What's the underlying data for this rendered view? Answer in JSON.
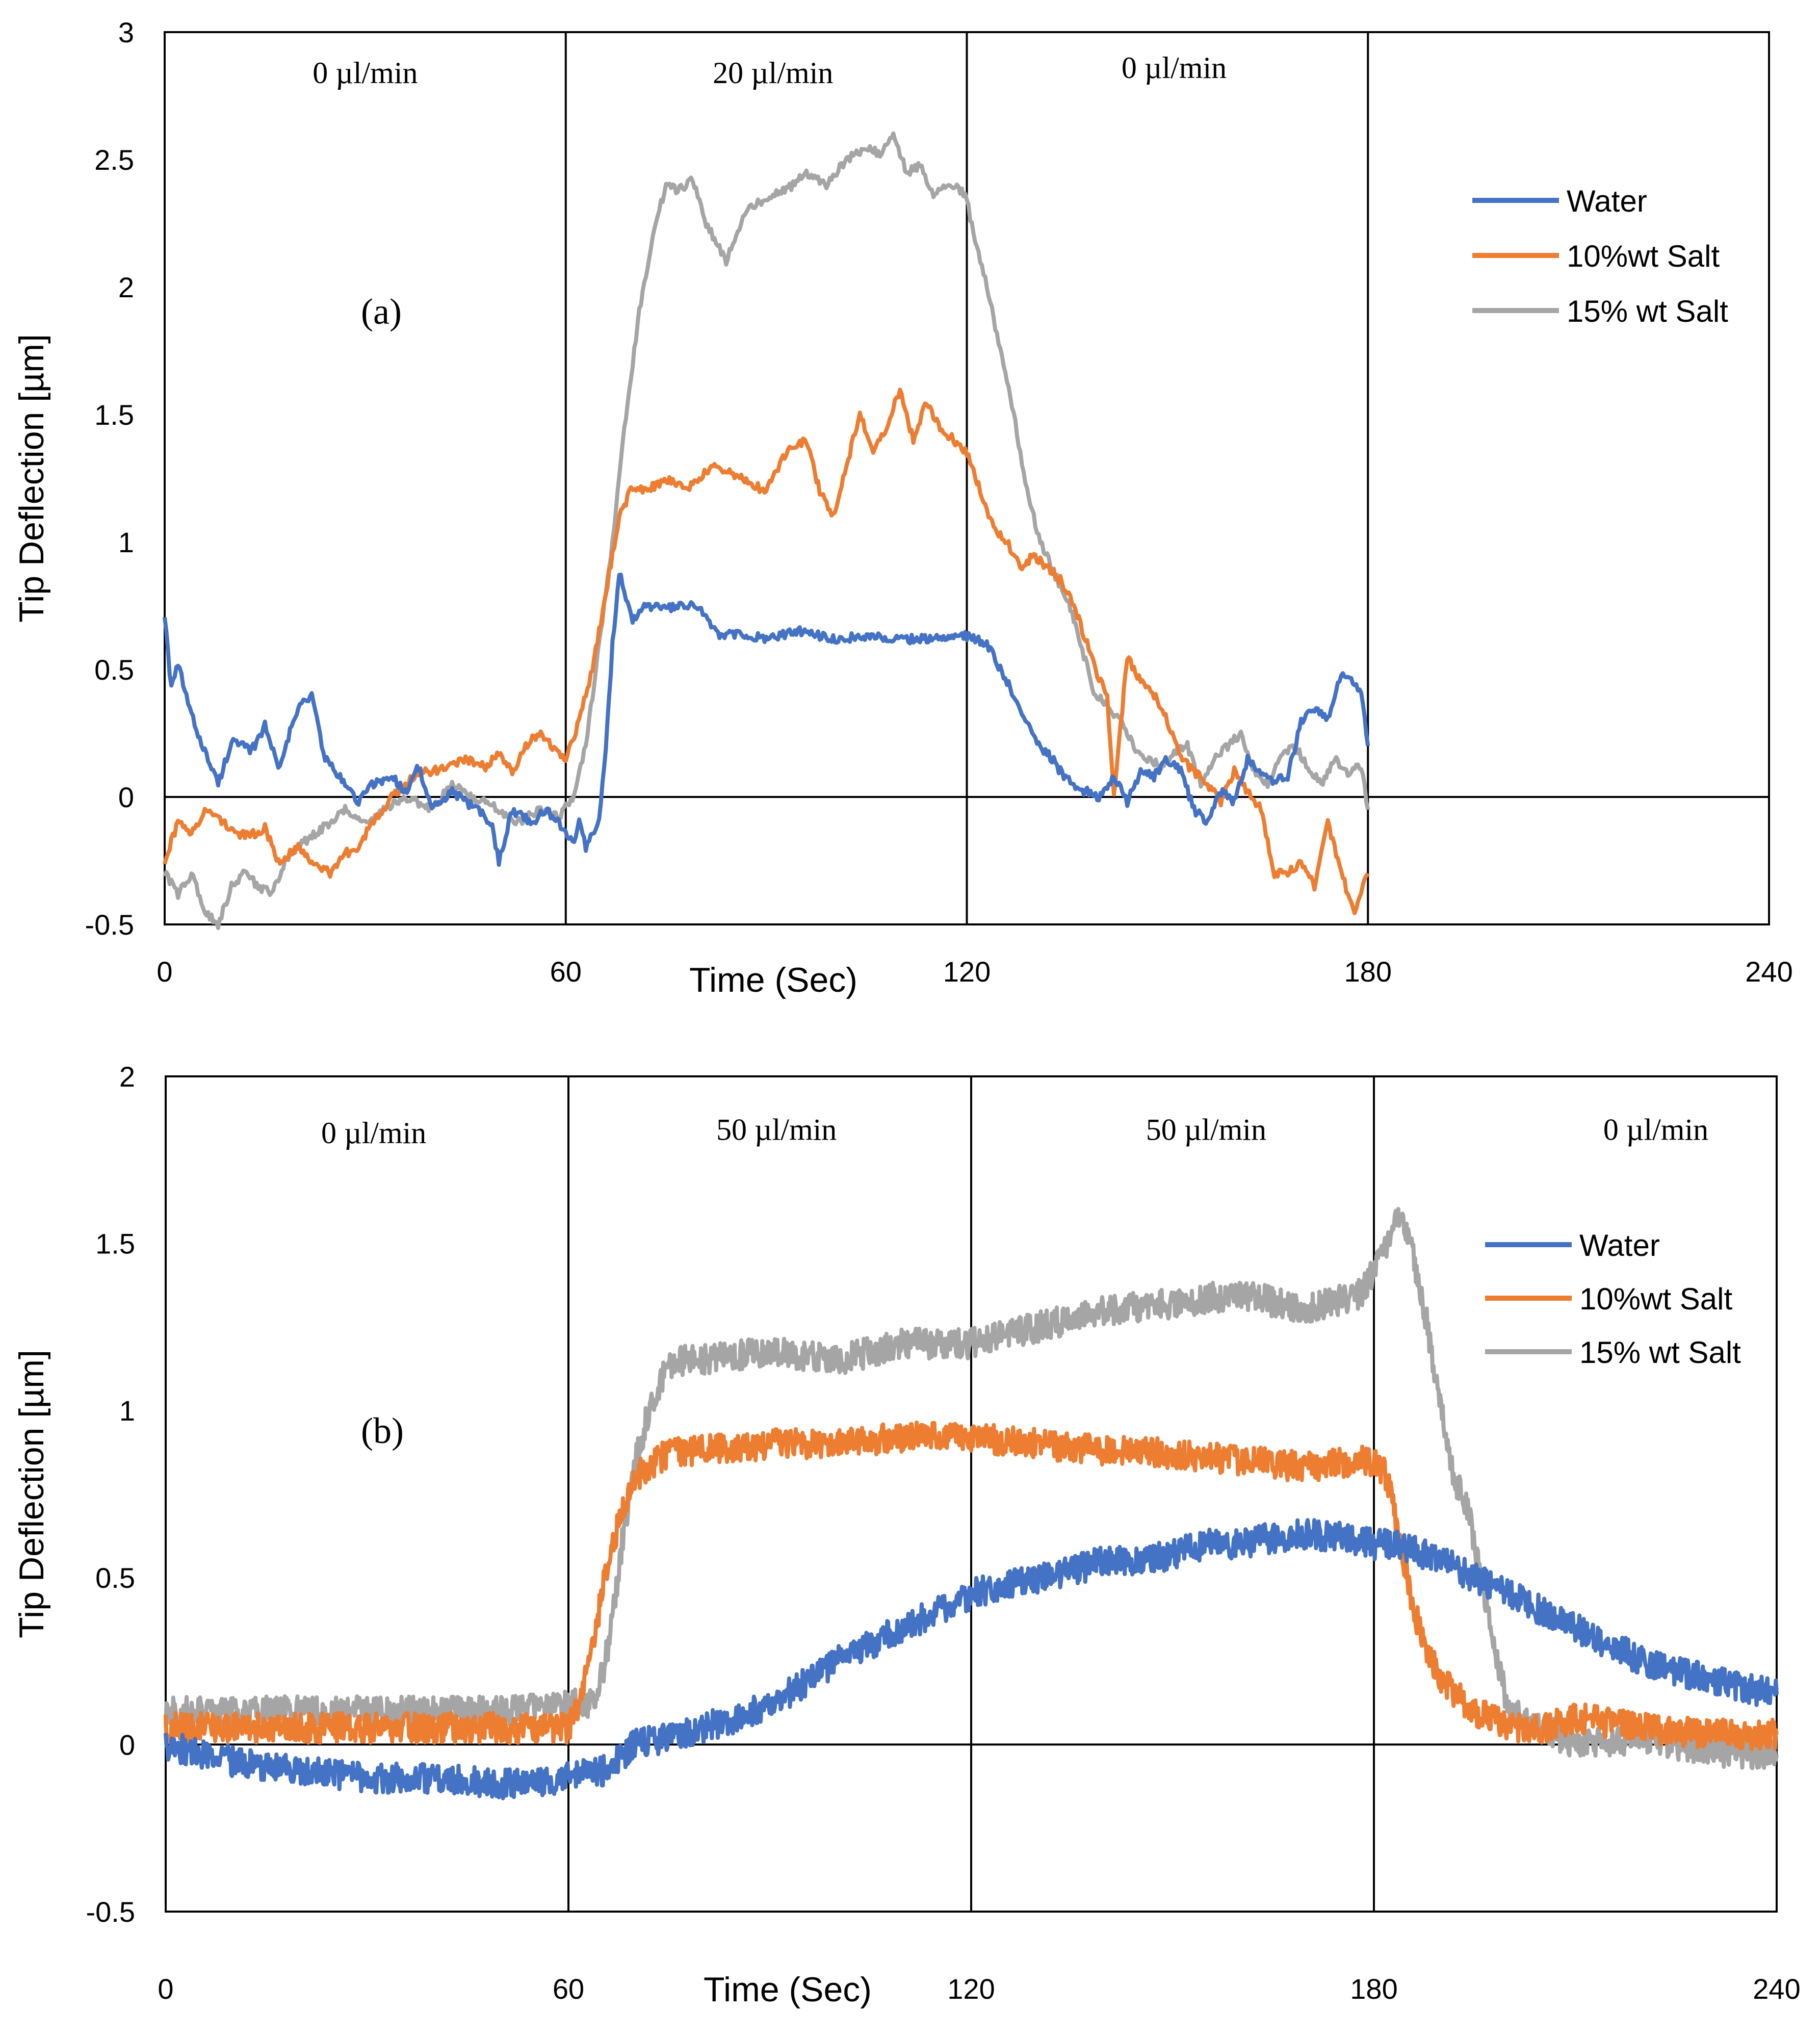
{
  "chart_data": [
    {
      "type": "line",
      "panel_label": "(a)",
      "xlabel": "Time (Sec)",
      "ylabel": "Tip Deflection [µm]",
      "xlim": [
        0,
        240
      ],
      "ylim": [
        -0.5,
        3
      ],
      "x_ticks": [
        0,
        60,
        120,
        180,
        240
      ],
      "x_tick_labels": [
        "0",
        "60",
        "120",
        "180",
        "240"
      ],
      "y_ticks": [
        -0.5,
        0,
        0.5,
        1,
        1.5,
        2,
        2.5,
        3
      ],
      "y_tick_labels": [
        "-0.5",
        "0",
        "0.5",
        "1",
        "1.5",
        "2",
        "2.5",
        "3"
      ],
      "vertical_lines": [
        60,
        120,
        180
      ],
      "flow_annotations": [
        {
          "text": "0 µl/min",
          "x": 30,
          "y": 2.8
        },
        {
          "text": "20 µl/min",
          "x": 91,
          "y": 2.8
        },
        {
          "text": "0 µl/min",
          "x": 151,
          "y": 2.82
        }
      ],
      "legend": [
        "Water",
        "10%wt Salt",
        "15% wt Salt"
      ],
      "series": [
        {
          "name": "Water",
          "color": "#4472C4",
          "x": [
            0,
            1,
            2,
            4,
            6,
            8,
            10,
            13,
            15,
            17,
            20,
            22,
            24,
            27,
            29,
            31,
            34,
            36,
            38,
            40,
            43,
            45,
            47,
            49,
            50,
            52,
            55,
            57,
            59,
            61,
            62,
            63,
            64,
            65,
            66,
            67,
            68,
            70,
            72,
            75,
            80,
            82,
            83,
            86,
            90,
            95,
            100,
            105,
            110,
            115,
            119,
            121,
            123,
            125,
            127,
            129,
            131,
            133,
            134,
            136,
            138,
            140,
            142,
            144,
            146,
            148,
            150,
            152,
            154,
            156,
            158,
            160,
            162,
            164,
            166,
            168,
            170,
            172,
            174,
            176,
            178,
            179,
            180
          ],
          "y": [
            0.72,
            0.42,
            0.52,
            0.32,
            0.18,
            0.05,
            0.22,
            0.18,
            0.28,
            0.12,
            0.35,
            0.4,
            0.15,
            0.05,
            -0.02,
            0.05,
            0.08,
            0.02,
            0.12,
            -0.05,
            0.02,
            -0.02,
            -0.05,
            -0.12,
            -0.25,
            -0.05,
            -0.1,
            -0.05,
            -0.1,
            -0.18,
            -0.1,
            -0.2,
            -0.15,
            -0.1,
            0.2,
            0.6,
            0.88,
            0.7,
            0.75,
            0.74,
            0.75,
            0.66,
            0.63,
            0.64,
            0.62,
            0.65,
            0.62,
            0.63,
            0.62,
            0.62,
            0.64,
            0.62,
            0.6,
            0.5,
            0.4,
            0.3,
            0.2,
            0.14,
            0.1,
            0.04,
            0.02,
            0.0,
            0.08,
            -0.02,
            0.1,
            0.08,
            0.15,
            0.1,
            -0.05,
            -0.1,
            0.02,
            -0.02,
            0.15,
            0.1,
            0.06,
            0.08,
            0.3,
            0.35,
            0.3,
            0.48,
            0.45,
            0.4,
            0.2
          ]
        },
        {
          "name": "10%wt Salt",
          "color": "#ED7D31",
          "x": [
            0,
            2,
            4,
            6,
            9,
            11,
            13,
            15,
            17,
            20,
            22,
            25,
            27,
            29,
            31,
            34,
            36,
            38,
            40,
            43,
            45,
            48,
            50,
            52,
            54,
            56,
            58,
            60,
            62,
            64,
            66,
            68,
            70,
            72,
            75,
            78,
            82,
            86,
            90,
            93,
            96,
            98,
            100,
            102,
            104,
            106,
            108,
            110,
            112,
            114,
            116,
            118,
            120,
            122,
            124,
            126,
            128,
            130,
            132,
            134,
            136,
            138,
            140,
            141,
            142,
            144,
            146,
            148,
            150,
            152,
            154,
            156,
            158,
            160,
            162,
            164,
            166,
            168,
            170,
            172,
            174,
            176,
            178,
            180
          ],
          "y": [
            -0.25,
            -0.1,
            -0.15,
            -0.05,
            -0.1,
            -0.15,
            -0.15,
            -0.12,
            -0.25,
            -0.2,
            -0.25,
            -0.3,
            -0.22,
            -0.2,
            -0.1,
            0.0,
            0.05,
            0.1,
            0.1,
            0.12,
            0.15,
            0.12,
            0.18,
            0.1,
            0.2,
            0.25,
            0.2,
            0.15,
            0.3,
            0.5,
            0.8,
            1.1,
            1.22,
            1.2,
            1.25,
            1.2,
            1.3,
            1.25,
            1.2,
            1.35,
            1.4,
            1.2,
            1.1,
            1.3,
            1.5,
            1.35,
            1.45,
            1.6,
            1.4,
            1.55,
            1.45,
            1.4,
            1.35,
            1.2,
            1.05,
            1.0,
            0.9,
            0.95,
            0.9,
            0.85,
            0.75,
            0.6,
            0.45,
            0.4,
            0.0,
            0.55,
            0.45,
            0.4,
            0.3,
            0.15,
            0.1,
            0.05,
            -0.02,
            0.1,
            0.02,
            -0.05,
            -0.3,
            -0.3,
            -0.25,
            -0.35,
            -0.1,
            -0.3,
            -0.45,
            -0.3
          ]
        },
        {
          "name": "15% wt Salt",
          "color": "#A5A5A5",
          "x": [
            0,
            2,
            4,
            6,
            8,
            10,
            12,
            14,
            16,
            18,
            20,
            22,
            25,
            27,
            30,
            33,
            36,
            40,
            43,
            46,
            50,
            53,
            56,
            59,
            61,
            63,
            65,
            67,
            69,
            71,
            73,
            75,
            77,
            79,
            81,
            84,
            87,
            90,
            93,
            96,
            99,
            102,
            105,
            107,
            109,
            111,
            113,
            115,
            117,
            119,
            120,
            121,
            123,
            125,
            127,
            129,
            131,
            133,
            135,
            137,
            139,
            141,
            143,
            145,
            147,
            149,
            151,
            153,
            155,
            157,
            159,
            161,
            163,
            165,
            167,
            169,
            171,
            173,
            175,
            177,
            179,
            180
          ],
          "y": [
            -0.3,
            -0.38,
            -0.3,
            -0.45,
            -0.5,
            -0.35,
            -0.3,
            -0.35,
            -0.38,
            -0.25,
            -0.2,
            -0.15,
            -0.1,
            -0.05,
            -0.1,
            -0.05,
            0.0,
            -0.05,
            0.05,
            0.0,
            -0.05,
            -0.1,
            -0.05,
            -0.08,
            0.0,
            0.2,
            0.6,
            1.0,
            1.5,
            1.9,
            2.2,
            2.4,
            2.38,
            2.42,
            2.25,
            2.1,
            2.3,
            2.35,
            2.38,
            2.45,
            2.4,
            2.5,
            2.55,
            2.52,
            2.6,
            2.45,
            2.48,
            2.35,
            2.4,
            2.38,
            2.35,
            2.2,
            2.0,
            1.75,
            1.5,
            1.2,
            1.0,
            0.88,
            0.78,
            0.6,
            0.42,
            0.35,
            0.3,
            0.2,
            0.15,
            0.12,
            0.18,
            0.2,
            0.05,
            0.15,
            0.2,
            0.25,
            0.1,
            0.05,
            0.15,
            0.2,
            0.12,
            0.05,
            0.15,
            0.1,
            0.12,
            -0.05
          ]
        }
      ]
    },
    {
      "type": "line",
      "panel_label": "(b)",
      "xlabel": "Time (Sec)",
      "ylabel": "Tip Deflection [µm]",
      "xlim": [
        0,
        240
      ],
      "ylim": [
        -0.5,
        2
      ],
      "x_ticks": [
        0,
        60,
        120,
        180,
        240
      ],
      "x_tick_labels": [
        "0",
        "60",
        "120",
        "180",
        "240"
      ],
      "y_ticks": [
        -0.5,
        0,
        0.5,
        1,
        1.5,
        2
      ],
      "y_tick_labels": [
        "-0.5",
        "0",
        "0.5",
        "1",
        "1.5",
        "2"
      ],
      "vertical_lines": [
        60,
        120,
        180
      ],
      "flow_annotations": [
        {
          "text": "0 µl/min",
          "x": 31,
          "y": 1.8
        },
        {
          "text": "50 µl/min",
          "x": 91,
          "y": 1.81
        },
        {
          "text": "50 µl/min",
          "x": 155,
          "y": 1.81
        },
        {
          "text": "0 µl/min",
          "x": 222,
          "y": 1.81
        }
      ],
      "legend": [
        "Water",
        "10%wt Salt",
        "15% wt Salt"
      ],
      "series": [
        {
          "name": "Water",
          "color": "#4472C4",
          "x": [
            0,
            10,
            20,
            30,
            40,
            50,
            60,
            65,
            70,
            75,
            80,
            85,
            90,
            95,
            100,
            105,
            110,
            115,
            120,
            125,
            130,
            135,
            140,
            145,
            150,
            155,
            160,
            165,
            170,
            175,
            180,
            183,
            186,
            190,
            195,
            200,
            205,
            210,
            215,
            220,
            225,
            230,
            235,
            240
          ],
          "y": [
            0.0,
            -0.05,
            -0.08,
            -0.1,
            -0.1,
            -0.12,
            -0.1,
            -0.08,
            0.0,
            0.02,
            0.05,
            0.08,
            0.12,
            0.18,
            0.25,
            0.3,
            0.35,
            0.4,
            0.45,
            0.48,
            0.5,
            0.52,
            0.55,
            0.55,
            0.57,
            0.6,
            0.6,
            0.62,
            0.63,
            0.62,
            0.6,
            0.6,
            0.58,
            0.55,
            0.5,
            0.45,
            0.4,
            0.35,
            0.3,
            0.25,
            0.22,
            0.2,
            0.17,
            0.15
          ]
        },
        {
          "name": "10%wt Salt",
          "color": "#ED7D31",
          "x": [
            0,
            10,
            20,
            30,
            40,
            50,
            60,
            62,
            64,
            66,
            68,
            70,
            73,
            76,
            80,
            90,
            100,
            110,
            120,
            130,
            140,
            150,
            160,
            170,
            178,
            180,
            182,
            184,
            186,
            188,
            190,
            192,
            195,
            200,
            205,
            210,
            220,
            230,
            240
          ],
          "y": [
            0.05,
            0.05,
            0.05,
            0.05,
            0.05,
            0.05,
            0.05,
            0.15,
            0.35,
            0.55,
            0.7,
            0.8,
            0.85,
            0.88,
            0.88,
            0.9,
            0.9,
            0.92,
            0.92,
            0.9,
            0.88,
            0.87,
            0.85,
            0.83,
            0.85,
            0.85,
            0.8,
            0.6,
            0.4,
            0.28,
            0.2,
            0.15,
            0.1,
            0.05,
            0.05,
            0.08,
            0.05,
            0.03,
            0.03
          ]
        },
        {
          "name": "15% wt Salt",
          "color": "#A5A5A5",
          "x": [
            0,
            10,
            20,
            30,
            40,
            50,
            60,
            64,
            66,
            68,
            70,
            72,
            74,
            76,
            78,
            80,
            90,
            100,
            110,
            120,
            130,
            140,
            150,
            160,
            170,
            178,
            182,
            184,
            186,
            188,
            190,
            192,
            194,
            196,
            198,
            200,
            205,
            210,
            220,
            230,
            240
          ],
          "y": [
            0.1,
            0.1,
            0.1,
            0.1,
            0.1,
            0.1,
            0.12,
            0.12,
            0.3,
            0.6,
            0.85,
            1.0,
            1.1,
            1.15,
            1.15,
            1.15,
            1.18,
            1.15,
            1.2,
            1.2,
            1.25,
            1.3,
            1.32,
            1.35,
            1.3,
            1.35,
            1.5,
            1.6,
            1.45,
            1.25,
            1.0,
            0.8,
            0.7,
            0.5,
            0.3,
            0.1,
            0.05,
            0.0,
            0.02,
            -0.02,
            -0.03
          ]
        }
      ]
    }
  ]
}
